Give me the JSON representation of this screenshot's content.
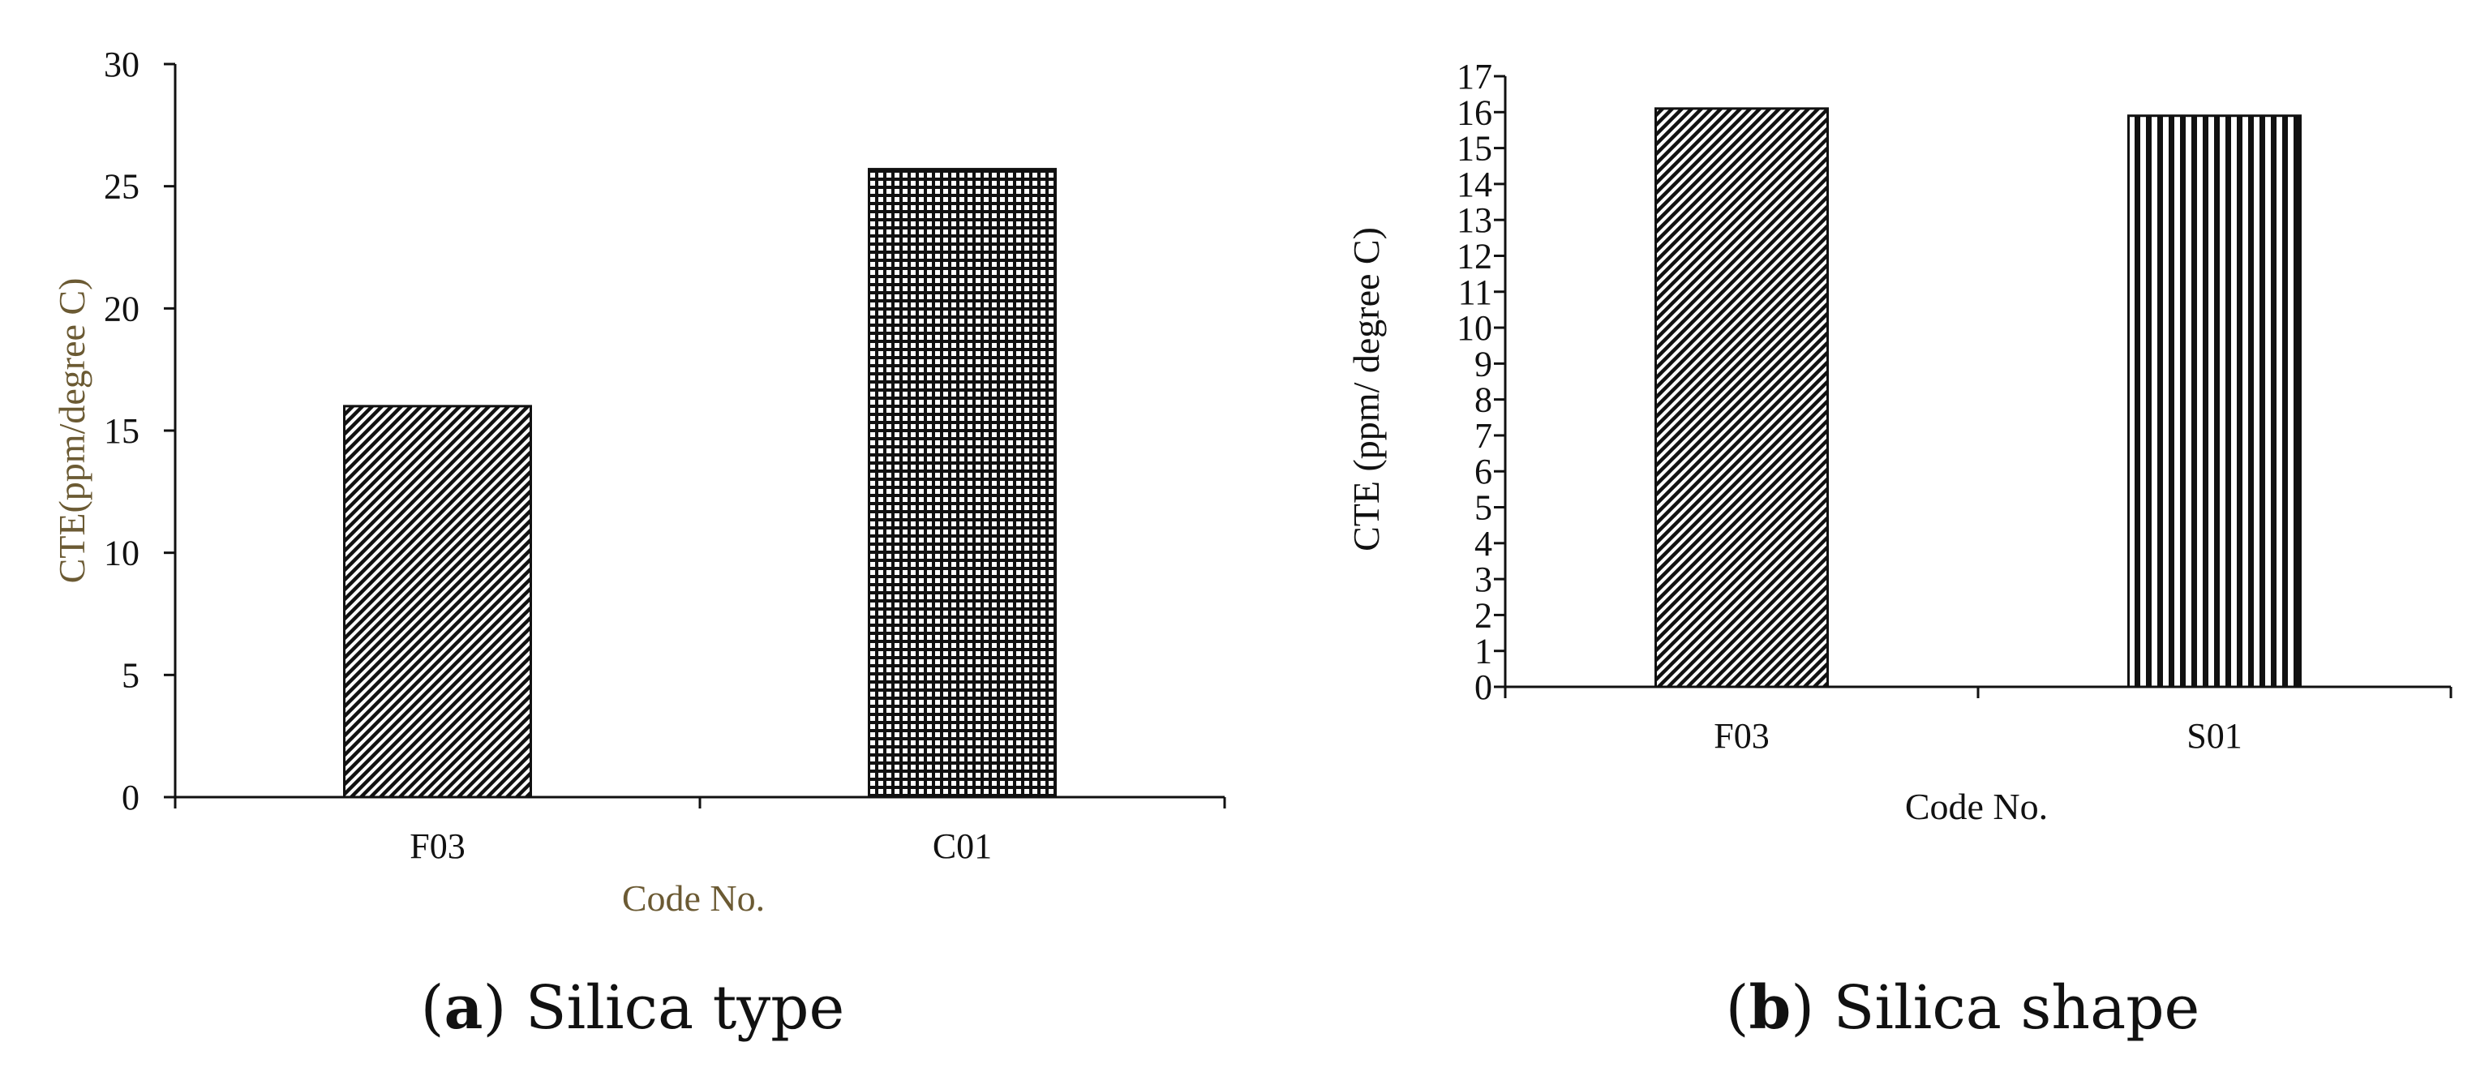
{
  "chart_data": [
    {
      "type": "bar",
      "title": "",
      "xlabel": "Code No.",
      "ylabel": "CTE(ppm/degree C)",
      "ylim": [
        0,
        30
      ],
      "yticks": [
        "0",
        "5",
        "10",
        "15",
        "20",
        "25",
        "30"
      ],
      "categories": [
        "F03",
        "C01"
      ],
      "values": [
        16,
        25.7
      ],
      "patterns": [
        "diagonal-hatch",
        "grid-hatch"
      ],
      "label_color": "#6b5a33",
      "caption_letter": "a",
      "caption_text": "Silica type"
    },
    {
      "type": "bar",
      "title": "",
      "xlabel": "Code No.",
      "ylabel": "CTE (ppm/ degree C)",
      "ylim": [
        0,
        17
      ],
      "yticks": [
        "0",
        "1",
        "2",
        "3",
        "4",
        "5",
        "6",
        "7",
        "8",
        "9",
        "10",
        "11",
        "12",
        "13",
        "14",
        "15",
        "16",
        "17"
      ],
      "categories": [
        "F03",
        "S01"
      ],
      "values": [
        16.1,
        15.9
      ],
      "patterns": [
        "diagonal-hatch",
        "vertical-stripes"
      ],
      "label_color": "#111111",
      "caption_letter": "b",
      "caption_text": "Silica shape"
    }
  ]
}
